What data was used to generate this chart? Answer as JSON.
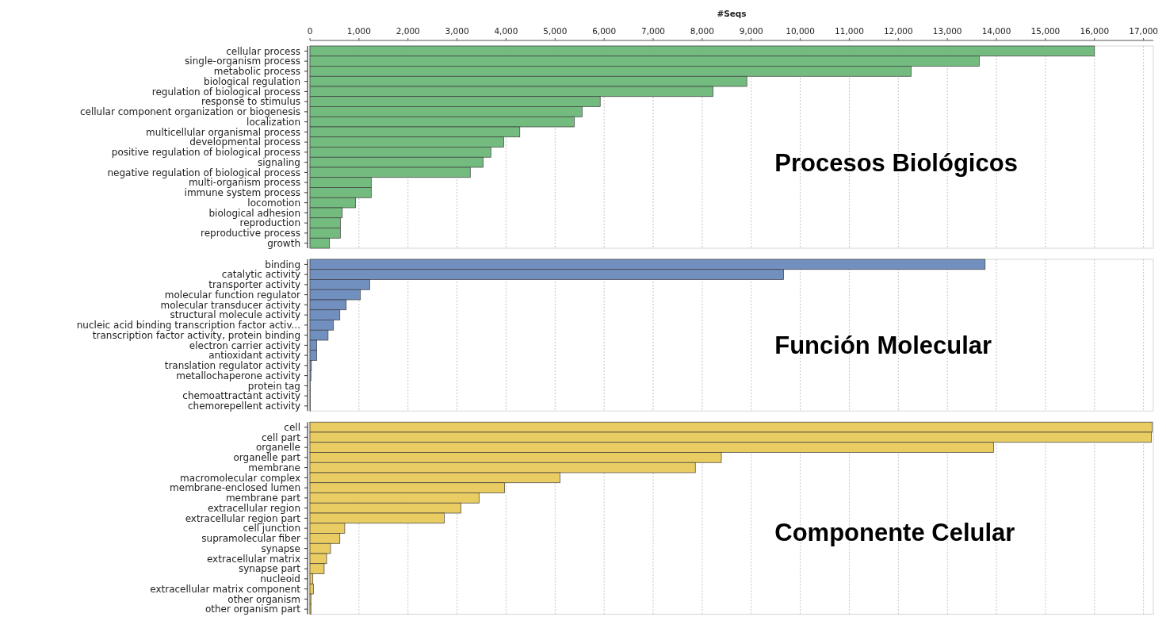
{
  "chart_data": [
    {
      "type": "bar",
      "orientation": "horizontal",
      "title": "Procesos Biológicos",
      "xlabel": "#Seqs",
      "categories": [
        "cellular process",
        "single-organism process",
        "metabolic process",
        "biological regulation",
        "regulation of biological process",
        "response to stimulus",
        "cellular component organization or biogenesis",
        "localization",
        "multicellular organismal process",
        "developmental process",
        "positive regulation of biological process",
        "signaling",
        "negative regulation of biological process",
        "multi-organism process",
        "immune system process",
        "locomotion",
        "biological adhesion",
        "reproduction",
        "reproductive process",
        "growth"
      ],
      "values": [
        16000,
        13650,
        12260,
        8910,
        8220,
        5920,
        5550,
        5390,
        4280,
        3950,
        3690,
        3530,
        3270,
        1250,
        1250,
        930,
        660,
        620,
        620,
        400
      ],
      "color": "#74bb80",
      "xlim": [
        0,
        17200
      ],
      "xticks": [
        0,
        {
          "value": 1000,
          "label": "1,000"
        },
        {
          "value": 2000,
          "label": "2,000"
        },
        {
          "value": 3000,
          "label": "3,000"
        },
        {
          "value": 4000,
          "label": "4,000"
        },
        {
          "value": 5000,
          "label": "5,000"
        },
        {
          "value": 6000,
          "label": "6,000"
        },
        {
          "value": 7000,
          "label": "7,000"
        },
        {
          "value": 8000,
          "label": "8,000"
        },
        {
          "value": 9000,
          "label": "9,000"
        },
        {
          "value": 10000,
          "label": "10,000"
        },
        {
          "value": 11000,
          "label": "11,000"
        },
        {
          "value": 12000,
          "label": "12,000"
        },
        {
          "value": 13000,
          "label": "13,000"
        },
        {
          "value": 14000,
          "label": "14,000"
        },
        {
          "value": 15000,
          "label": "15,000"
        },
        {
          "value": 16000,
          "label": "16,000"
        },
        {
          "value": 17000,
          "label": "17,000"
        }
      ],
      "grid": "x"
    },
    {
      "type": "bar",
      "orientation": "horizontal",
      "title": "Función Molecular",
      "categories": [
        "binding",
        "catalytic activity",
        "transporter activity",
        "molecular function regulator",
        "molecular transducer activity",
        "structural molecule activity",
        "nucleic acid binding transcription factor activ...",
        "transcription factor activity, protein binding",
        "electron carrier activity",
        "antioxidant activity",
        "translation regulator activity",
        "metallochaperone activity",
        "protein tag",
        "chemoattractant activity",
        "chemorepellent activity"
      ],
      "values": [
        13770,
        9660,
        1220,
        1030,
        740,
        610,
        480,
        370,
        140,
        140,
        30,
        20,
        10,
        10,
        10
      ],
      "color": "#7190c0",
      "xlim": [
        0,
        17200
      ],
      "xticks": [
        {
          "value": 0,
          "label": null
        },
        {
          "value": 1000,
          "label": null
        },
        {
          "value": 2000,
          "label": null
        },
        {
          "value": 3000,
          "label": null
        },
        {
          "value": 4000,
          "label": null
        },
        {
          "value": 5000,
          "label": null
        },
        {
          "value": 6000,
          "label": null
        },
        {
          "value": 7000,
          "label": null
        },
        {
          "value": 8000,
          "label": null
        },
        {
          "value": 9000,
          "label": null
        },
        {
          "value": 10000,
          "label": null
        },
        {
          "value": 11000,
          "label": null
        },
        {
          "value": 12000,
          "label": null
        },
        {
          "value": 13000,
          "label": null
        },
        {
          "value": 14000,
          "label": null
        },
        {
          "value": 15000,
          "label": null
        },
        {
          "value": 16000,
          "label": null
        },
        {
          "value": 17000,
          "label": null
        }
      ],
      "grid": "x",
      "tick_labels": "y"
    },
    {
      "type": "bar",
      "orientation": "horizontal",
      "title": "Componente Celular",
      "categories": [
        "cell",
        "cell part",
        "organelle",
        "organelle part",
        "membrane",
        "macromolecular complex",
        "membrane-enclosed lumen",
        "membrane part",
        "extracellular region",
        "extracellular region part",
        "cell junction",
        "supramolecular fiber",
        "synapse",
        "extracellular matrix",
        "synapse part",
        "nucleoid",
        "extracellular matrix component",
        "other organism",
        "other organism part"
      ],
      "values": [
        17180,
        17160,
        13940,
        8390,
        7860,
        5100,
        3970,
        3450,
        3080,
        2740,
        710,
        610,
        420,
        340,
        290,
        60,
        70,
        20,
        20
      ],
      "color": "#eacd62",
      "xlim": [
        0,
        17200
      ],
      "xticks": [
        {
          "value": 0,
          "label": null
        },
        {
          "value": 1000,
          "label": null
        },
        {
          "value": 2000,
          "label": null
        },
        {
          "value": 3000,
          "label": null
        },
        {
          "value": 4000,
          "label": null
        },
        {
          "value": 5000,
          "label": null
        },
        {
          "value": 6000,
          "label": null
        },
        {
          "value": 7000,
          "label": null
        },
        {
          "value": 8000,
          "label": null
        },
        {
          "value": 9000,
          "label": null
        },
        {
          "value": 10000,
          "label": null
        },
        {
          "value": 11000,
          "label": null
        },
        {
          "value": 12000,
          "label": null
        },
        {
          "value": 13000,
          "label": null
        },
        {
          "value": 14000,
          "label": null
        },
        {
          "value": 15000,
          "label": null
        },
        {
          "value": 16000,
          "label": null
        },
        {
          "value": 17000,
          "label": null
        }
      ],
      "grid": "x",
      "tick_labels": "y"
    }
  ]
}
